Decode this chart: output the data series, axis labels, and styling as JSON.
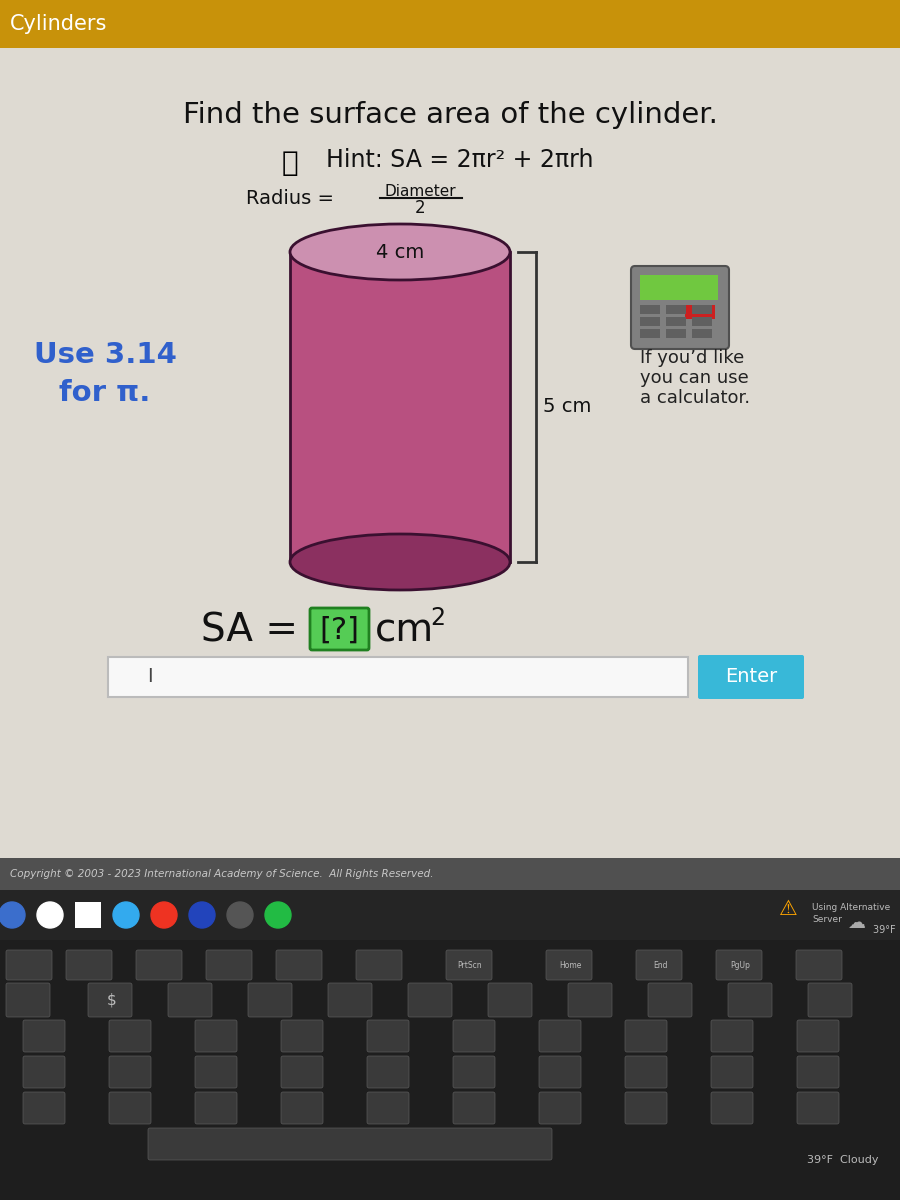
{
  "title_bar_color": "#C8920A",
  "title_bar_text": "Cylinders",
  "title_bar_text_color": "#FFFFFF",
  "bg_color": "#C8C4BB",
  "main_bg_color": "#DEDAD2",
  "main_title": "Find the surface area of the cylinder.",
  "hint_text": "Hint: SA = 2πr² + 2πrh",
  "radius_text": "Radius = ",
  "diameter_text": "Diameter",
  "over_2_text": "2",
  "use_pi_line1": "Use 3.14",
  "use_pi_line2": "for π.",
  "use_pi_color": "#3060CC",
  "radius_label": "4 cm",
  "height_label": "5 cm",
  "cyl_body_color": "#B85080",
  "cyl_top_color": "#CC90B0",
  "cyl_bottom_color": "#8B3060",
  "cyl_edge_color": "#3A1030",
  "sa_box_color": "#55CC55",
  "sa_box_border": "#208020",
  "enter_button_color": "#38B8D8",
  "enter_text": "Enter",
  "input_box_color": "#F8F8F8",
  "copyright_text": "Copyright © 2003 - 2023 International Academy of Science.  All Rights Reserved.",
  "bottom_bar_color": "#444444",
  "taskbar_color": "#252525",
  "warning_text1": "Using Alternative",
  "warning_text2": "Server",
  "weather_text": "39°F  Cloudy",
  "keyboard_color": "#222222",
  "seahorse_color": "#9060C0"
}
